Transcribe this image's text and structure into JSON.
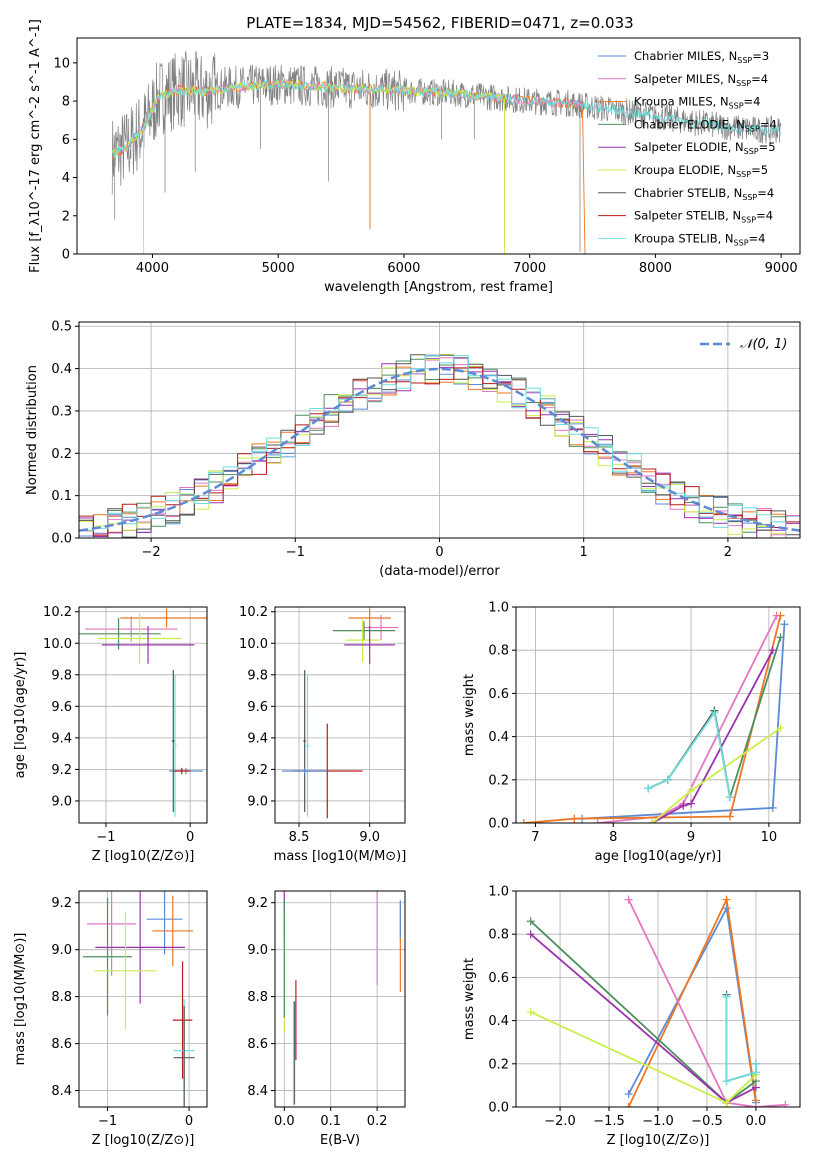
{
  "figure": {
    "title": "PLATE=1834, MJD=54562, FIBERID=0471, z=0.033",
    "colors": {
      "Chabrier MILES": "#5b8bd6",
      "Salpeter MILES": "#e377c2",
      "Kroupa MILES": "#ee7722",
      "Chabrier ELODIE": "#4f8f5f",
      "Salpeter ELODIE": "#9a32b0",
      "Kroupa ELODIE": "#c9ef4a",
      "Chabrier STELIB": "#555555",
      "Salpeter STELIB": "#b81c1c",
      "Kroupa STELIB": "#6fdede",
      "data": "#808080"
    }
  },
  "chart_data": [
    {
      "id": "spectrum",
      "type": "line",
      "xlabel": "wavelength [Angstrom, rest frame]",
      "ylabel": "Flux [f_λ10^-17 erg cm^-2 s^-1 A^-1]",
      "xlim": [
        3400,
        9150
      ],
      "ylim": [
        0,
        11.3
      ],
      "xticks": [
        4000,
        5000,
        6000,
        7000,
        8000,
        9000
      ],
      "yticks": [
        0,
        2,
        4,
        6,
        8,
        10
      ],
      "grid": false,
      "legend_position": "upper right",
      "legend": [
        {
          "name": "Chabrier MILES",
          "nssp": "3"
        },
        {
          "name": "Salpeter MILES",
          "nssp": "4"
        },
        {
          "name": "Kroupa MILES",
          "nssp": "4"
        },
        {
          "name": "Chabrier ELODIE",
          "nssp": "4"
        },
        {
          "name": "Salpeter ELODIE",
          "nssp": "5"
        },
        {
          "name": "Kroupa ELODIE",
          "nssp": "5"
        },
        {
          "name": "Chabrier STELIB",
          "nssp": "4"
        },
        {
          "name": "Salpeter STELIB",
          "nssp": "4"
        },
        {
          "name": "Kroupa STELIB",
          "nssp": "4"
        }
      ],
      "model_continuum": {
        "x": [
          3680,
          3800,
          3950,
          4050,
          4200,
          4400,
          4600,
          4800,
          5000,
          5200,
          5500,
          5800,
          6100,
          6400,
          6700,
          7000,
          7300,
          7450
        ],
        "y": [
          5.2,
          5.6,
          6.8,
          8.2,
          8.6,
          8.5,
          8.7,
          8.8,
          8.9,
          8.8,
          8.7,
          8.6,
          8.5,
          8.4,
          8.2,
          8.0,
          7.9,
          7.8
        ]
      },
      "stelib_continuum": {
        "x": [
          7000,
          7300,
          7600,
          7900,
          8200,
          8500,
          8800,
          9000
        ],
        "y": [
          8.0,
          7.9,
          7.6,
          7.3,
          7.0,
          6.7,
          6.5,
          6.5
        ]
      },
      "data_spikes": [
        {
          "x": 3700,
          "y": 1.8
        },
        {
          "x": 3930,
          "y": 0.5
        },
        {
          "x": 4100,
          "y": 3.2
        },
        {
          "x": 4340,
          "y": 4.3
        },
        {
          "x": 4860,
          "y": 5.5
        },
        {
          "x": 5400,
          "y": 3.8
        },
        {
          "x": 5730,
          "y": 1.3
        },
        {
          "x": 6300,
          "y": 6.0
        },
        {
          "x": 6560,
          "y": 6.0
        },
        {
          "x": 6800,
          "y": 0.3
        },
        {
          "x": 7400,
          "y": 0.1
        }
      ]
    },
    {
      "id": "residuals",
      "type": "line",
      "xlabel": "(data-model)/error",
      "ylabel": "Normed distribution",
      "xlim": [
        -2.5,
        2.5
      ],
      "ylim": [
        0,
        0.51
      ],
      "xticks": [
        -2,
        -1,
        0,
        1,
        2
      ],
      "yticks": [
        0.0,
        0.1,
        0.2,
        0.3,
        0.4,
        0.5
      ],
      "grid": true,
      "legend_position": "upper right",
      "legend": [
        {
          "name": "𝒩(0, 1)"
        }
      ],
      "bin_width": 0.1
    },
    {
      "id": "age_vs_z",
      "type": "scatter",
      "xlabel": "Z [log10(Z/Z⊙)]",
      "ylabel": "age [log10(age/yr)]",
      "xlim": [
        -1.32,
        0.2
      ],
      "ylim": [
        8.86,
        10.23
      ],
      "xticks": [
        -1,
        0
      ],
      "yticks": [
        9.0,
        9.2,
        9.4,
        9.6,
        9.8,
        10.0,
        10.2
      ],
      "grid": true,
      "points": [
        {
          "model": "Kroupa MILES",
          "x": -0.28,
          "y": 10.16,
          "xerr": 0.55,
          "yerr": 0.06
        },
        {
          "model": "Salpeter MILES",
          "x": -0.7,
          "y": 10.09,
          "xerr": 0.55,
          "yerr": 0.08
        },
        {
          "model": "Chabrier ELODIE",
          "x": -0.85,
          "y": 10.06,
          "xerr": 0.5,
          "yerr": 0.1
        },
        {
          "model": "Kroupa ELODIE",
          "x": -0.6,
          "y": 10.03,
          "xerr": 0.5,
          "yerr": 0.16
        },
        {
          "model": "Salpeter ELODIE",
          "x": -0.5,
          "y": 9.99,
          "xerr": 0.55,
          "yerr": 0.12
        },
        {
          "model": "Chabrier STELIB",
          "x": -0.2,
          "y": 9.38,
          "xerr": 0.02,
          "yerr": 0.45
        },
        {
          "model": "Kroupa STELIB",
          "x": -0.18,
          "y": 9.35,
          "xerr": 0.02,
          "yerr": 0.45
        },
        {
          "model": "Chabrier MILES",
          "x": -0.05,
          "y": 9.19,
          "xerr": 0.2,
          "yerr": 0.02
        },
        {
          "model": "Salpeter STELIB",
          "x": -0.1,
          "y": 9.19,
          "xerr": 0.1,
          "yerr": 0.02
        }
      ]
    },
    {
      "id": "age_vs_mass",
      "type": "scatter",
      "xlabel": "mass [log10(M/M⊙)]",
      "ylabel": "",
      "xlim": [
        8.33,
        9.25
      ],
      "ylim": [
        8.86,
        10.23
      ],
      "xticks": [
        8.5,
        9.0
      ],
      "yticks": [
        9.0,
        9.2,
        9.4,
        9.6,
        9.8,
        10.0,
        10.2
      ],
      "grid": true,
      "points": [
        {
          "model": "Kroupa MILES",
          "x": 9.0,
          "y": 10.16,
          "xerr": 0.15,
          "yerr": 0.06
        },
        {
          "model": "Salpeter MILES",
          "x": 9.08,
          "y": 10.1,
          "xerr": 0.12,
          "yerr": 0.08
        },
        {
          "model": "Chabrier ELODIE",
          "x": 8.96,
          "y": 10.08,
          "xerr": 0.22,
          "yerr": 0.06
        },
        {
          "model": "Kroupa ELODIE",
          "x": 8.95,
          "y": 10.02,
          "xerr": 0.12,
          "yerr": 0.14
        },
        {
          "model": "Salpeter ELODIE",
          "x": 9.0,
          "y": 9.99,
          "xerr": 0.18,
          "yerr": 0.12
        },
        {
          "model": "Chabrier STELIB",
          "x": 8.54,
          "y": 9.38,
          "xerr": 0.01,
          "yerr": 0.45
        },
        {
          "model": "Kroupa STELIB",
          "x": 8.56,
          "y": 9.35,
          "xerr": 0.01,
          "yerr": 0.45
        },
        {
          "model": "Salpeter STELIB",
          "x": 8.7,
          "y": 9.19,
          "xerr": 0.25,
          "yerr": 0.3
        },
        {
          "model": "Chabrier MILES",
          "x": 8.54,
          "y": 9.19,
          "xerr": 0.16,
          "yerr": 0.02
        }
      ]
    },
    {
      "id": "massweight_vs_age",
      "type": "line",
      "xlabel": "age [log10(age/yr)]",
      "ylabel": "mass weight",
      "xlim": [
        6.75,
        10.4
      ],
      "ylim": [
        0,
        1.0
      ],
      "xticks": [
        7,
        8,
        9,
        10
      ],
      "yticks": [
        0.0,
        0.2,
        0.4,
        0.6,
        0.8,
        1.0
      ],
      "grid": true,
      "series": [
        {
          "model": "Chabrier MILES",
          "x": [
            7.6,
            10.05,
            10.2
          ],
          "y": [
            0.02,
            0.07,
            0.92
          ]
        },
        {
          "model": "Salpeter MILES",
          "x": [
            7.8,
            8.6,
            8.9,
            10.1
          ],
          "y": [
            0.0,
            0.03,
            0.09,
            0.96
          ]
        },
        {
          "model": "Kroupa MILES",
          "x": [
            6.85,
            7.5,
            9.5,
            10.15
          ],
          "y": [
            0.0,
            0.02,
            0.03,
            0.96
          ]
        },
        {
          "model": "Chabrier ELODIE",
          "x": [
            8.45,
            8.7,
            9.3,
            9.5,
            10.15
          ],
          "y": [
            0.16,
            0.2,
            0.52,
            0.12,
            0.86
          ]
        },
        {
          "model": "Salpeter ELODIE",
          "x": [
            8.5,
            8.9,
            9.0,
            10.05
          ],
          "y": [
            0.0,
            0.08,
            0.09,
            0.8
          ]
        },
        {
          "model": "Kroupa ELODIE",
          "x": [
            8.5,
            9.0,
            10.15
          ],
          "y": [
            0.0,
            0.15,
            0.44
          ]
        },
        {
          "model": "Chabrier STELIB",
          "x": [
            8.45,
            8.7,
            9.3,
            9.5
          ],
          "y": [
            0.16,
            0.2,
            0.52,
            0.12
          ]
        },
        {
          "model": "Kroupa STELIB",
          "x": [
            8.45,
            8.7,
            9.3,
            9.5
          ],
          "y": [
            0.16,
            0.2,
            0.51,
            0.12
          ]
        }
      ]
    },
    {
      "id": "mass_vs_z",
      "type": "scatter",
      "xlabel": "Z [log10(Z/Z⊙)]",
      "ylabel": "mass [log10(M/M⊙)]",
      "xlim": [
        -1.35,
        0.22
      ],
      "ylim": [
        8.33,
        9.25
      ],
      "xticks": [
        -1,
        0
      ],
      "yticks": [
        8.4,
        8.6,
        8.8,
        9.0,
        9.2
      ],
      "grid": true,
      "points": [
        {
          "model": "Salpeter MILES",
          "x": -0.95,
          "y": 9.11,
          "xerr": 0.3,
          "yerr": 0.22
        },
        {
          "model": "Chabrier MILES",
          "x": -0.3,
          "y": 9.13,
          "xerr": 0.22,
          "yerr": 0.15
        },
        {
          "model": "Kroupa MILES",
          "x": -0.2,
          "y": 9.08,
          "xerr": 0.25,
          "yerr": 0.15
        },
        {
          "model": "Salpeter ELODIE",
          "x": -0.6,
          "y": 9.01,
          "xerr": 0.55,
          "yerr": 0.24
        },
        {
          "model": "Chabrier ELODIE",
          "x": -1.0,
          "y": 8.97,
          "xerr": 0.3,
          "yerr": 0.25
        },
        {
          "model": "Kroupa ELODIE",
          "x": -0.78,
          "y": 8.91,
          "xerr": 0.38,
          "yerr": 0.25
        },
        {
          "model": "Salpeter STELIB",
          "x": -0.08,
          "y": 8.7,
          "xerr": 0.12,
          "yerr": 0.25
        },
        {
          "model": "Kroupa STELIB",
          "x": -0.06,
          "y": 8.57,
          "xerr": 0.13,
          "yerr": 0.22
        },
        {
          "model": "Chabrier STELIB",
          "x": -0.06,
          "y": 8.54,
          "xerr": 0.13,
          "yerr": 0.22
        }
      ]
    },
    {
      "id": "mass_vs_ebv",
      "type": "scatter",
      "xlabel": "E(B-V)",
      "ylabel": "",
      "xlim": [
        -0.02,
        0.26
      ],
      "ylim": [
        8.33,
        9.25
      ],
      "xticks": [
        0.0,
        0.1,
        0.2
      ],
      "yticks": [
        8.4,
        8.6,
        8.8,
        9.0,
        9.2
      ],
      "grid": true,
      "points": [
        {
          "model": "Salpeter ELODIE",
          "x": 0.0,
          "y": 9.15,
          "xerr": 0.0,
          "yerr": 0.1
        },
        {
          "model": "Kroupa ELODIE",
          "x": 0.0,
          "y": 8.9,
          "xerr": 0.0,
          "yerr": 0.25
        },
        {
          "model": "Chabrier ELODIE",
          "x": 0.0,
          "y": 8.96,
          "xerr": 0.0,
          "yerr": 0.25
        },
        {
          "model": "Salpeter MILES",
          "x": 0.2,
          "y": 9.05,
          "xerr": 0.0,
          "yerr": 0.2
        },
        {
          "model": "Kroupa MILES",
          "x": 0.25,
          "y": 9.01,
          "xerr": 0.0,
          "yerr": 0.19
        },
        {
          "model": "Chabrier MILES",
          "x": 0.25,
          "y": 9.13,
          "xerr": 0.0,
          "yerr": 0.08
        },
        {
          "model": "Salpeter STELIB",
          "x": 0.025,
          "y": 8.7,
          "xerr": 0.0,
          "yerr": 0.17
        },
        {
          "model": "Chabrier STELIB",
          "x": 0.022,
          "y": 8.56,
          "xerr": 0.0,
          "yerr": 0.22
        },
        {
          "model": "Kroupa STELIB",
          "x": 0.02,
          "y": 8.56,
          "xerr": 0.0,
          "yerr": 0.22
        }
      ]
    },
    {
      "id": "massweight_vs_z",
      "type": "line",
      "xlabel": "Z [log10(Z/Z⊙)]",
      "ylabel": "mass weight",
      "xlim": [
        -2.45,
        0.45
      ],
      "ylim": [
        0,
        1.0
      ],
      "xticks": [
        -2.0,
        -1.5,
        -1.0,
        -0.5,
        0.0
      ],
      "yticks": [
        0.0,
        0.2,
        0.4,
        0.6,
        0.8,
        1.0
      ],
      "grid": true,
      "series": [
        {
          "model": "Chabrier MILES",
          "x": [
            -1.3,
            -0.3,
            0.0
          ],
          "y": [
            0.06,
            0.92,
            0.02
          ]
        },
        {
          "model": "Kroupa MILES",
          "x": [
            -1.3,
            -0.3,
            0.0
          ],
          "y": [
            0.0,
            0.96,
            0.03
          ]
        },
        {
          "model": "Salpeter MILES",
          "x": [
            -1.3,
            -0.3,
            0.0,
            0.3
          ],
          "y": [
            0.96,
            0.02,
            0.0,
            0.01
          ]
        },
        {
          "model": "Chabrier ELODIE",
          "x": [
            -2.3,
            -0.3,
            0.0
          ],
          "y": [
            0.86,
            0.02,
            0.12
          ]
        },
        {
          "model": "Salpeter ELODIE",
          "x": [
            -2.3,
            -0.3,
            0.0
          ],
          "y": [
            0.8,
            0.02,
            0.09
          ]
        },
        {
          "model": "Kroupa ELODIE",
          "x": [
            -2.3,
            -0.3,
            0.0
          ],
          "y": [
            0.44,
            0.02,
            0.15
          ]
        },
        {
          "model": "Chabrier STELIB",
          "x": [
            -0.3,
            -0.3,
            0.0,
            0.0
          ],
          "y": [
            0.52,
            0.12,
            0.16,
            0.2
          ]
        },
        {
          "model": "Kroupa STELIB",
          "x": [
            -0.3,
            -0.3,
            0.0,
            0.0
          ],
          "y": [
            0.51,
            0.12,
            0.16,
            0.2
          ]
        }
      ]
    }
  ]
}
